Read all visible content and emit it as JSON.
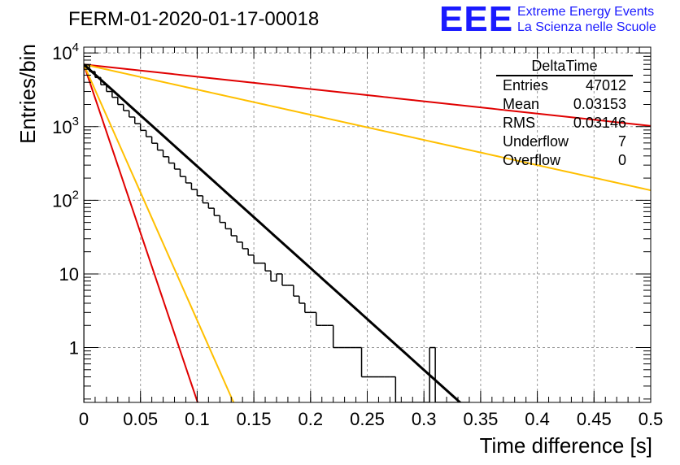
{
  "title": "FERM-01-2020-01-17-00018",
  "logo": {
    "mark": "EEE",
    "line1": "Extreme Energy Events",
    "line2": "La Scienza nelle Scuole",
    "color": "#1a1aff"
  },
  "stats": {
    "title": "DeltaTime",
    "rows": [
      {
        "label": "Entries",
        "value": "47012"
      },
      {
        "label": "Mean",
        "value": "0.03153"
      },
      {
        "label": "RMS",
        "value": "0.03146"
      },
      {
        "label": "Underflow",
        "value": "7"
      },
      {
        "label": "Overflow",
        "value": "0"
      }
    ]
  },
  "chart_data": {
    "type": "line",
    "xlabel": "Time difference [s]",
    "ylabel": "Entries/bin",
    "xlim": [
      0,
      0.5
    ],
    "ylim": [
      0.18,
      12000
    ],
    "yscale": "log",
    "grid": true,
    "x_ticks": [
      "0",
      "0.05",
      "0.1",
      "0.15",
      "0.2",
      "0.25",
      "0.3",
      "0.35",
      "0.4",
      "0.45",
      "0.5"
    ],
    "y_ticks": [
      {
        "value": 1,
        "label": "1"
      },
      {
        "value": 10,
        "label": "10"
      },
      {
        "value": 100,
        "label": "10^2"
      },
      {
        "value": 1000,
        "label": "10^3"
      },
      {
        "value": 10000,
        "label": "10^4"
      }
    ],
    "series": [
      {
        "kind": "histogram",
        "color": "#000000",
        "bin_width": 0.005,
        "bin_low_edges": [
          0.0,
          0.005,
          0.01,
          0.015,
          0.02,
          0.025,
          0.03,
          0.035,
          0.04,
          0.045,
          0.05,
          0.055,
          0.06,
          0.065,
          0.07,
          0.075,
          0.08,
          0.085,
          0.09,
          0.095,
          0.1,
          0.105,
          0.11,
          0.115,
          0.12,
          0.125,
          0.13,
          0.135,
          0.14,
          0.145,
          0.15,
          0.155,
          0.16,
          0.165,
          0.17,
          0.175,
          0.18,
          0.185,
          0.19,
          0.195,
          0.2,
          0.205,
          0.21,
          0.215,
          0.22,
          0.225,
          0.23,
          0.235,
          0.24,
          0.245,
          0.25,
          0.255,
          0.26,
          0.265,
          0.27,
          0.275,
          0.28,
          0.285,
          0.29,
          0.295,
          0.3,
          0.305,
          0.31,
          0.315,
          0.32,
          0.325,
          0.33,
          0.335
        ],
        "counts": [
          6900,
          5600,
          4650,
          3700,
          3000,
          2500,
          2000,
          1650,
          1350,
          1100,
          890,
          730,
          595,
          480,
          390,
          320,
          265,
          210,
          172,
          140,
          115,
          92,
          78,
          62,
          50,
          41,
          33,
          27,
          22,
          18,
          14,
          14,
          11,
          8,
          10,
          7,
          7,
          5,
          4,
          3,
          3,
          2,
          2,
          2,
          1,
          1,
          1,
          1,
          1,
          0.4,
          0.4,
          0.4,
          0.4,
          0.4,
          0.4,
          0,
          0,
          0,
          0,
          0,
          0,
          1,
          0,
          0,
          0,
          0,
          0,
          0
        ]
      },
      {
        "kind": "fit",
        "name": "",
        "color": "#000000",
        "width": 3,
        "A": 7000,
        "tau": 0.0314,
        "x_range": [
          0,
          0.34
        ]
      },
      {
        "kind": "reference",
        "color": "#e00000",
        "A": 7000,
        "tau": 0.0095
      },
      {
        "kind": "reference",
        "color": "#ffbf00",
        "A": 7000,
        "tau": 0.0125
      },
      {
        "kind": "reference",
        "color": "#e00000",
        "A": 7000,
        "tau": 0.26
      },
      {
        "kind": "reference",
        "color": "#ffbf00",
        "A": 7000,
        "tau": 0.127
      }
    ]
  }
}
